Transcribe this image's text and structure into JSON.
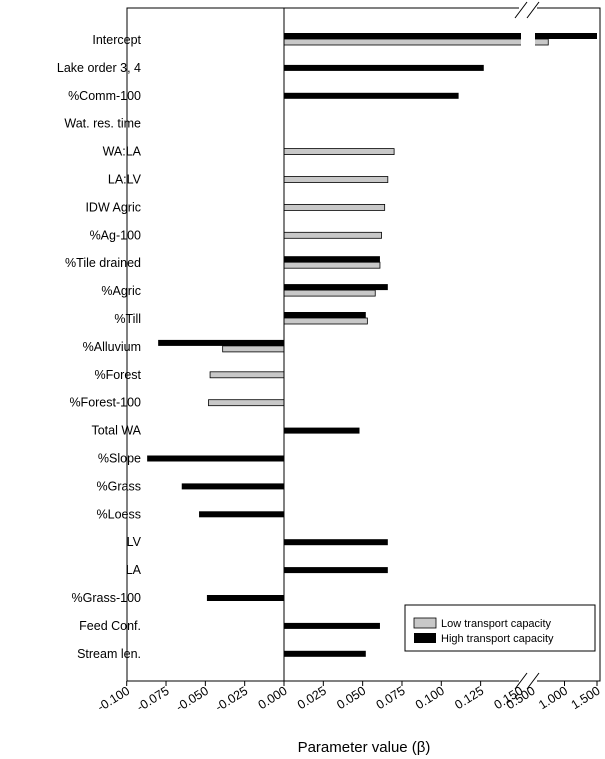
{
  "chart_data": {
    "type": "bar",
    "orientation": "horizontal",
    "xlabel": "Parameter value (β)",
    "x_ticks": [
      "-0.100",
      "-0.075",
      "-0.050",
      "-0.025",
      "0.000",
      "0.025",
      "0.050",
      "0.075",
      "0.100",
      "0.125",
      "0.150",
      "0.500",
      "1.000",
      "1.500"
    ],
    "axis_break": "between 0.150 and 0.500",
    "legend_position": "bottom-right",
    "categories": [
      "Intercept",
      "Lake order 3, 4",
      "%Comm-100",
      "Wat. res. time",
      "WA:LA",
      "LA:LV",
      "IDW Agric",
      "%Ag-100",
      "%Tile drained",
      "%Agric",
      "%Till",
      "%Alluvium",
      "%Forest",
      "%Forest-100",
      "Total WA",
      "%Slope",
      "%Grass",
      "%Loess",
      "LV",
      "LA",
      "%Grass-100",
      "Feed Conf.",
      "Stream len."
    ],
    "series": [
      {
        "name": "High transport capacity",
        "color": "#000000",
        "values": [
          1.5,
          0.127,
          0.111,
          null,
          null,
          null,
          null,
          null,
          0.061,
          0.066,
          0.052,
          -0.08,
          null,
          null,
          0.048,
          -0.087,
          -0.065,
          -0.054,
          0.066,
          0.066,
          -0.049,
          0.061,
          0.052
        ]
      },
      {
        "name": "Low transport capacity",
        "color": "#c8c8c8",
        "values": [
          0.75,
          null,
          null,
          null,
          0.07,
          0.066,
          0.064,
          0.062,
          0.061,
          0.058,
          0.053,
          -0.039,
          -0.047,
          -0.048,
          null,
          null,
          null,
          null,
          null,
          null,
          null,
          null,
          null
        ]
      }
    ]
  }
}
